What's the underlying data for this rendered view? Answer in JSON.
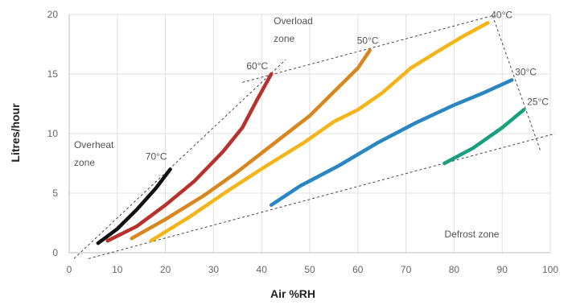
{
  "chart_data": {
    "type": "line",
    "xlabel": "Air %RH",
    "ylabel": "Litres/hour",
    "xlim": [
      0,
      100
    ],
    "ylim": [
      0,
      20
    ],
    "x_ticks": [
      0,
      10,
      20,
      30,
      40,
      50,
      60,
      70,
      80,
      90,
      100
    ],
    "y_ticks": [
      0,
      5,
      10,
      15,
      20
    ],
    "grid": true,
    "series": [
      {
        "name": "70°C",
        "color": "#111111",
        "points": [
          [
            6,
            0.8
          ],
          [
            10,
            2
          ],
          [
            14,
            3.6
          ],
          [
            18,
            5.4
          ],
          [
            21,
            7
          ]
        ]
      },
      {
        "name": "60°C",
        "color": "#b8322d",
        "points": [
          [
            8,
            1
          ],
          [
            14,
            2.2
          ],
          [
            20,
            4
          ],
          [
            26,
            6
          ],
          [
            32,
            8.5
          ],
          [
            36,
            10.5
          ],
          [
            39,
            12.8
          ],
          [
            42,
            15
          ]
        ]
      },
      {
        "name": "50°C",
        "color": "#d8861e",
        "points": [
          [
            13,
            1.2
          ],
          [
            20,
            2.8
          ],
          [
            28,
            4.8
          ],
          [
            35,
            6.8
          ],
          [
            42,
            9
          ],
          [
            50,
            11.5
          ],
          [
            55,
            13.5
          ],
          [
            60,
            15.5
          ],
          [
            62.5,
            17
          ]
        ]
      },
      {
        "name": "40°C",
        "color": "#f4b51a",
        "points": [
          [
            17,
            1
          ],
          [
            25,
            3
          ],
          [
            33,
            5.2
          ],
          [
            41,
            7.3
          ],
          [
            49,
            9.3
          ],
          [
            55,
            11
          ],
          [
            60,
            12
          ],
          [
            65,
            13.4
          ],
          [
            71,
            15.5
          ],
          [
            77,
            17
          ],
          [
            82,
            18.2
          ],
          [
            87,
            19.3
          ]
        ]
      },
      {
        "name": "30°C",
        "color": "#2a86c0",
        "points": [
          [
            42,
            4
          ],
          [
            48,
            5.6
          ],
          [
            56,
            7.3
          ],
          [
            64,
            9.2
          ],
          [
            72,
            10.9
          ],
          [
            80,
            12.4
          ],
          [
            86,
            13.4
          ],
          [
            92,
            14.5
          ]
        ]
      },
      {
        "name": "25°C",
        "color": "#17a07d",
        "points": [
          [
            78,
            7.5
          ],
          [
            84,
            8.8
          ],
          [
            90,
            10.5
          ],
          [
            94.5,
            12
          ]
        ]
      }
    ],
    "annotations": [
      {
        "text_lines": [
          "Overheat",
          "zone"
        ],
        "x": 1,
        "y": 8.8
      },
      {
        "text_lines": [
          "Overload",
          "zone"
        ],
        "x": 42.5,
        "y": 19.2
      },
      {
        "text_lines": [
          "Defrost zone"
        ],
        "x": 78,
        "y": 1.3
      }
    ],
    "zone_lines": [
      [
        [
          1,
          -0.5
        ],
        [
          45,
          16.2
        ]
      ],
      [
        [
          36,
          14.3
        ],
        [
          88,
          19.9
        ]
      ],
      [
        [
          88,
          19.9
        ],
        [
          98,
          8.5
        ]
      ],
      [
        [
          4,
          -0.5
        ],
        [
          101,
          10
        ]
      ]
    ]
  }
}
